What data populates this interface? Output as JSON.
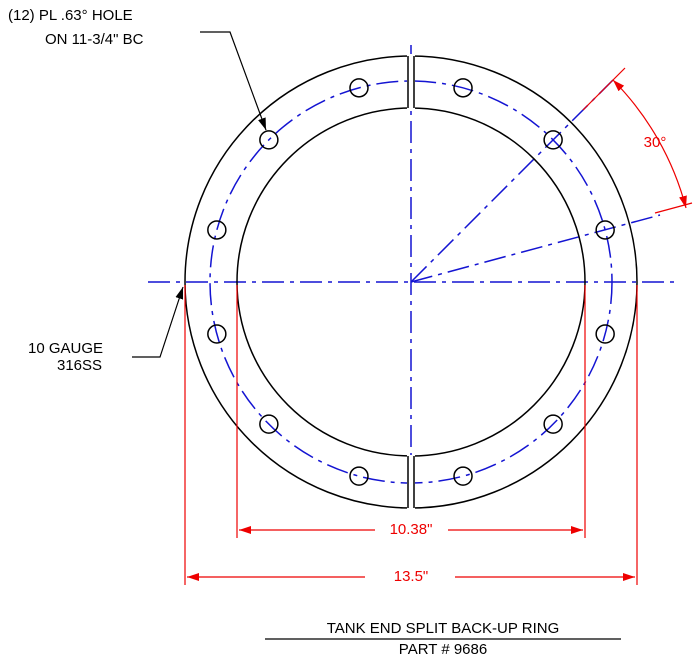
{
  "callouts": {
    "holes": {
      "line1": "(12) PL .63° HOLE",
      "line2": "ON 11-3/4\" BC"
    },
    "material": {
      "line1": "10 GAUGE",
      "line2": "316SS"
    }
  },
  "dimensions": {
    "angle": "30°",
    "inner_diameter": "10.38\"",
    "outer_diameter": "13.5\""
  },
  "title": {
    "name": "TANK END SPLIT BACK-UP RING",
    "part": "PART # 9686"
  }
}
